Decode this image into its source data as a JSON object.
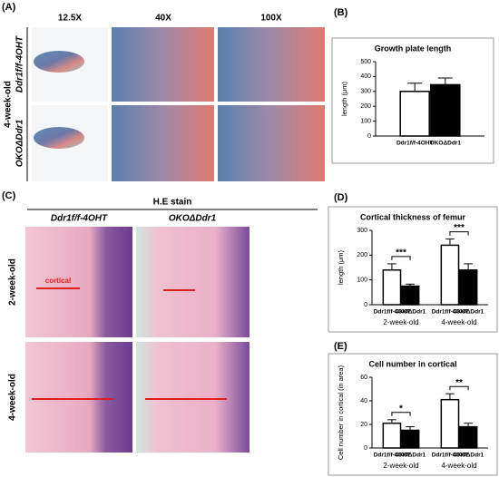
{
  "figure": {
    "labels": [
      "(A)",
      "(B)",
      "(C)",
      "(D)",
      "(E)"
    ],
    "A": {
      "magnifications": [
        "12.5X",
        "40X",
        "100X"
      ],
      "age": "4-week-old",
      "rows": [
        "Ddr1f/f-4OHT",
        "OKOΔDdr1"
      ]
    },
    "C": {
      "title": "H.E stain",
      "columns": [
        "Ddr1f/f-4OHT",
        "OKOΔDdr1"
      ],
      "rows": [
        "2-week-old",
        "4-week-old"
      ],
      "annotation": "cortical"
    }
  },
  "chart_data": [
    {
      "type": "bar",
      "title": "Growth plate length",
      "y_label": "length (μm)",
      "categories": [
        null
      ],
      "ylim": [
        0,
        500
      ],
      "yticks": [
        0,
        100,
        200,
        300,
        400,
        500
      ],
      "series": [
        {
          "name": "Ddr1f/f-4OHT",
          "color": "#ffffff",
          "values": [
            300
          ],
          "errors": [
            55
          ]
        },
        {
          "name": "OKOΔDdr1",
          "color": "#000000",
          "values": [
            345
          ],
          "errors": [
            45
          ]
        }
      ]
    },
    {
      "type": "bar",
      "title": "Cortical thickness of femur",
      "y_label": "length (μm)",
      "categories": [
        "2-week-old",
        "4-week-old"
      ],
      "ylim": [
        0,
        300
      ],
      "yticks": [
        0,
        100,
        200,
        300
      ],
      "annotations": [
        "***",
        "***"
      ],
      "series": [
        {
          "name": "Ddr1f/f-4OHT",
          "color": "#ffffff",
          "values": [
            140,
            240
          ],
          "errors": [
            25,
            25
          ]
        },
        {
          "name": "OKOΔDdr1",
          "color": "#000000",
          "values": [
            75,
            140
          ],
          "errors": [
            8,
            25
          ]
        }
      ]
    },
    {
      "type": "bar",
      "title": "Cell number in cortical",
      "y_label": "Cell number in cortical (in area)",
      "categories": [
        "2-week-old",
        "4-week-old"
      ],
      "ylim": [
        0,
        60
      ],
      "yticks": [
        0,
        20,
        40,
        60
      ],
      "annotations": [
        "*",
        "**"
      ],
      "series": [
        {
          "name": "Ddr1f/f-4OHT",
          "color": "#ffffff",
          "values": [
            21,
            41
          ],
          "errors": [
            3,
            5
          ]
        },
        {
          "name": "OKOΔDdr1",
          "color": "#000000",
          "values": [
            15,
            18
          ],
          "errors": [
            3,
            3
          ]
        }
      ]
    }
  ]
}
